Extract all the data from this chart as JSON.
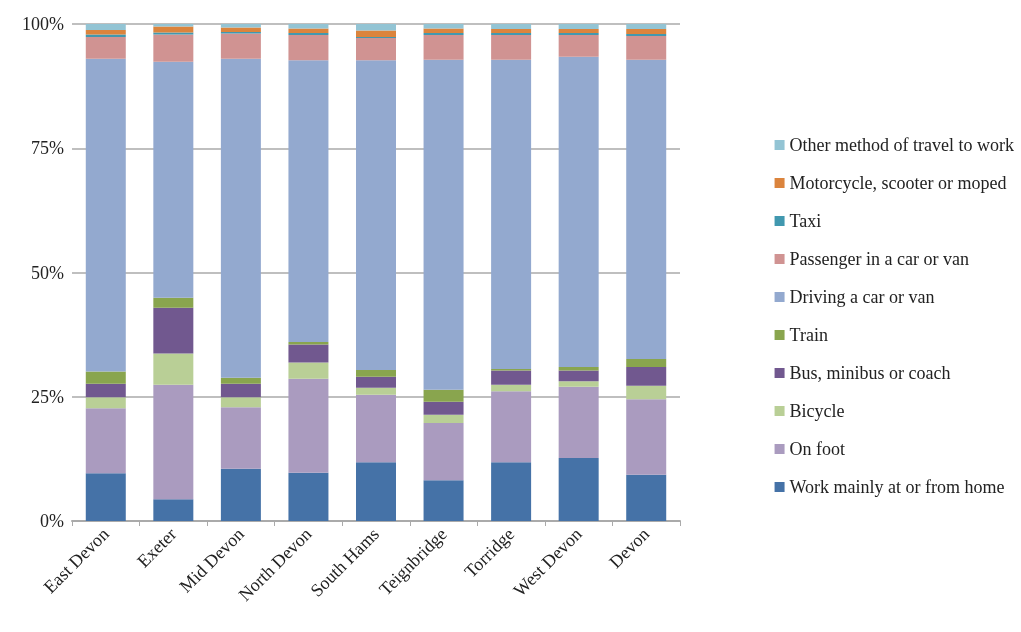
{
  "chart_data": {
    "type": "bar",
    "stacked": true,
    "categories": [
      "East Devon",
      "Exeter",
      "Mid Devon",
      "North Devon",
      "South Hams",
      "Teignbridge",
      "Torridge",
      "West Devon",
      "Devon"
    ],
    "series": [
      {
        "name": "Work mainly at or from home",
        "color": "#4572a7",
        "values": [
          9.6,
          4.4,
          10.5,
          9.7,
          11.8,
          8.2,
          11.8,
          12.7,
          9.3
        ]
      },
      {
        "name": "On foot",
        "color": "#aa9bbf",
        "values": [
          13.1,
          23.0,
          12.4,
          18.9,
          13.6,
          11.5,
          14.3,
          14.3,
          15.2
        ]
      },
      {
        "name": "Bicycle",
        "color": "#b9cf96",
        "values": [
          2.2,
          6.3,
          2.0,
          3.3,
          1.4,
          1.7,
          1.3,
          1.1,
          2.7
        ]
      },
      {
        "name": "Bus, minibus or coach",
        "color": "#71588f",
        "values": [
          2.7,
          9.2,
          2.7,
          3.6,
          2.2,
          2.6,
          2.9,
          2.2,
          3.8
        ]
      },
      {
        "name": "Train",
        "color": "#89a54e",
        "values": [
          2.5,
          2.0,
          1.2,
          0.5,
          1.4,
          2.4,
          0.3,
          0.7,
          1.6
        ]
      },
      {
        "name": "Driving a car or van",
        "color": "#93a9cf",
        "values": [
          62.9,
          47.5,
          64.2,
          56.7,
          62.3,
          66.4,
          62.2,
          62.4,
          60.2
        ]
      },
      {
        "name": "Passenger in a car or van",
        "color": "#d09392",
        "values": [
          4.4,
          5.5,
          5.1,
          5.1,
          4.5,
          5.0,
          5.0,
          4.4,
          4.8
        ]
      },
      {
        "name": "Taxi",
        "color": "#4198af",
        "values": [
          0.5,
          0.4,
          0.3,
          0.4,
          0.2,
          0.4,
          0.4,
          0.4,
          0.4
        ]
      },
      {
        "name": "Motorcycle, scooter or moped",
        "color": "#db843d",
        "values": [
          0.9,
          1.2,
          0.9,
          0.9,
          1.3,
          0.9,
          0.8,
          0.8,
          1.0
        ]
      },
      {
        "name": "Other method of travel to work",
        "color": "#93c4d4",
        "values": [
          1.2,
          0.5,
          0.7,
          0.9,
          1.3,
          0.9,
          1.0,
          1.0,
          1.0
        ]
      }
    ],
    "ylim": [
      0,
      100
    ],
    "yticks": [
      {
        "value": 0,
        "label": "0%"
      },
      {
        "value": 25,
        "label": "25%"
      },
      {
        "value": 50,
        "label": "50%"
      },
      {
        "value": 75,
        "label": "75%"
      },
      {
        "value": 100,
        "label": "100%"
      }
    ],
    "grid": "y",
    "legend": "right"
  }
}
